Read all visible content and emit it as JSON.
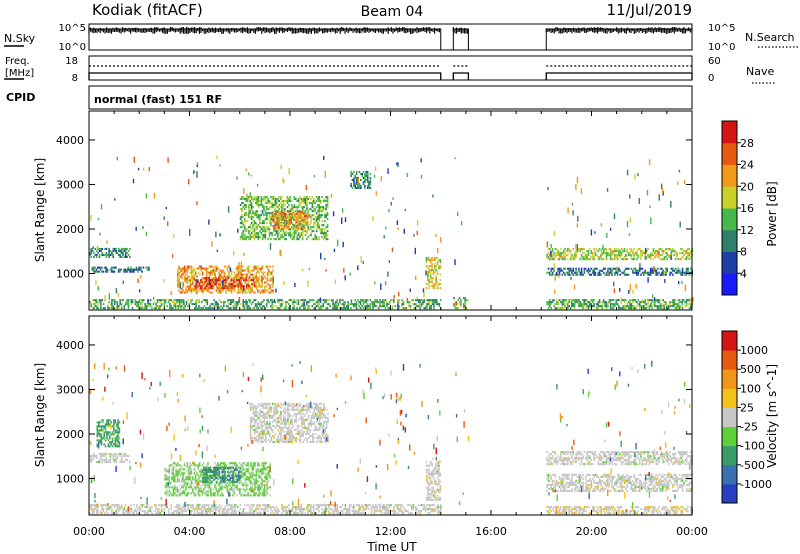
{
  "header": {
    "station": "Kodiak (fitACF)",
    "beam": "Beam 04",
    "date": "11/Jul/2019"
  },
  "top_panels": {
    "nsky_label": "N.Sky",
    "nsky_ticks": [
      "10^5",
      "10^0"
    ],
    "nsearch_label": "N.Search",
    "nsearch_ticks": [
      "10^5",
      "10^0"
    ],
    "freq_label": "Freq.",
    "freq_unit": "[MHz]",
    "freq_ticks": [
      "18",
      "8"
    ],
    "nave_label": "Nave",
    "nave_ticks": [
      "60",
      "0"
    ],
    "cpid_label": "CPID",
    "cpid_text": "normal (fast) 151 RF",
    "data_gaps_hours": [
      [
        14.0,
        14.5
      ],
      [
        15.1,
        18.2
      ]
    ]
  },
  "x_axis": {
    "label": "Time UT",
    "ticks": [
      "00:00",
      "04:00",
      "08:00",
      "12:00",
      "16:00",
      "20:00",
      "00:00"
    ]
  },
  "y_axis": {
    "label": "Slant Range [km]",
    "ticks": [
      "4000",
      "3000",
      "2000",
      "1000"
    ]
  },
  "colors": {
    "power": [
      "#1a1aff",
      "#1f3fa8",
      "#2f7f6a",
      "#44b84a",
      "#c9d22b",
      "#f09a1a",
      "#e85a12",
      "#d41515"
    ],
    "velocity": [
      "#2a3fbf",
      "#3a6fb0",
      "#3d9b6a",
      "#5fcf3a",
      "#c8c8c8",
      "#f2c21a",
      "#f0961a",
      "#e85a12",
      "#d41515"
    ]
  },
  "power_colorbar": {
    "label": "Power [dB]",
    "ticks": [
      "28",
      "24",
      "20",
      "16",
      "12",
      "8",
      "4"
    ]
  },
  "velocity_colorbar": {
    "label": "Velocity [m s^-1]",
    "ticks": [
      "1000",
      "500",
      "100",
      "25",
      "-25",
      "-100",
      "-500",
      "-1000"
    ]
  },
  "chart_data": [
    {
      "type": "heatmap",
      "title": "Power",
      "xlabel": "Time UT",
      "ylabel": "Slant Range [km]",
      "xlim_hours": [
        0,
        24
      ],
      "ylim_km": [
        180,
        4650
      ],
      "colorbar": {
        "label": "Power [dB]",
        "range": [
          0,
          30
        ]
      },
      "regions": [
        {
          "t": [
            0.0,
            14.0
          ],
          "r": [
            200,
            420
          ],
          "value": 12
        },
        {
          "t": [
            18.2,
            24.0
          ],
          "r": [
            200,
            400
          ],
          "value": 12
        },
        {
          "t": [
            0.0,
            1.6
          ],
          "r": [
            1350,
            1550
          ],
          "value": 10
        },
        {
          "t": [
            0.1,
            2.4
          ],
          "r": [
            1020,
            1120
          ],
          "value": 8
        },
        {
          "t": [
            3.5,
            7.3
          ],
          "r": [
            550,
            1150
          ],
          "value": 20
        },
        {
          "t": [
            4.2,
            6.6
          ],
          "r": [
            650,
            900
          ],
          "value": 26
        },
        {
          "t": [
            6.0,
            9.5
          ],
          "r": [
            1750,
            2700
          ],
          "value": 14
        },
        {
          "t": [
            7.3,
            8.7
          ],
          "r": [
            2000,
            2400
          ],
          "value": 22
        },
        {
          "t": [
            10.4,
            11.2
          ],
          "r": [
            2900,
            3300
          ],
          "value": 10
        },
        {
          "t": [
            13.4,
            14.0
          ],
          "r": [
            650,
            1350
          ],
          "value": 18
        },
        {
          "t": [
            14.5,
            15.1
          ],
          "r": [
            200,
            450
          ],
          "value": 14
        },
        {
          "t": [
            18.2,
            24.0
          ],
          "r": [
            1300,
            1550
          ],
          "value": 16
        },
        {
          "t": [
            18.2,
            24.0
          ],
          "r": [
            950,
            1100
          ],
          "value": 8
        }
      ]
    },
    {
      "type": "heatmap",
      "title": "Velocity",
      "xlabel": "Time UT",
      "ylabel": "Slant Range [km]",
      "xlim_hours": [
        0,
        24
      ],
      "ylim_km": [
        180,
        4650
      ],
      "colorbar": {
        "label": "Velocity [m s^-1]",
        "range": [
          -1000,
          1000
        ]
      },
      "regions": [
        {
          "t": [
            0.0,
            14.0
          ],
          "r": [
            200,
            400
          ],
          "value": 0
        },
        {
          "t": [
            18.2,
            24.0
          ],
          "r": [
            200,
            350
          ],
          "value": 60
        },
        {
          "t": [
            0.0,
            1.6
          ],
          "r": [
            1350,
            1550
          ],
          "value": 0
        },
        {
          "t": [
            0.3,
            1.2
          ],
          "r": [
            1700,
            2300
          ],
          "value": -400
        },
        {
          "t": [
            3.0,
            7.2
          ],
          "r": [
            600,
            1350
          ],
          "value": -150
        },
        {
          "t": [
            4.5,
            6.0
          ],
          "r": [
            900,
            1250
          ],
          "value": -500
        },
        {
          "t": [
            6.4,
            9.5
          ],
          "r": [
            1800,
            2700
          ],
          "value": 0
        },
        {
          "t": [
            13.4,
            14.0
          ],
          "r": [
            500,
            1400
          ],
          "value": 0
        },
        {
          "t": [
            18.2,
            24.0
          ],
          "r": [
            1300,
            1600
          ],
          "value": 0
        },
        {
          "t": [
            18.2,
            24.0
          ],
          "r": [
            700,
            1100
          ],
          "value": 0
        }
      ]
    }
  ]
}
